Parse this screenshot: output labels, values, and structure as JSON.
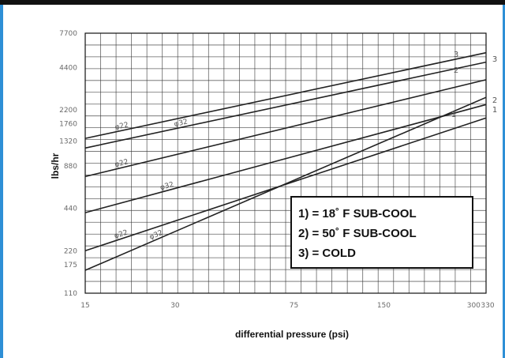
{
  "chart_data": {
    "type": "line",
    "xlabel": "differential pressure (psi)",
    "ylabel": "lbs/hr",
    "x_scale": "log",
    "y_scale": "log",
    "xlim": [
      15,
      330
    ],
    "ylim": [
      110,
      7700
    ],
    "x_ticks": [
      15,
      30,
      75,
      150,
      300,
      330
    ],
    "x_tick_labels": [
      "15",
      "30",
      "75",
      "150",
      "300",
      "330"
    ],
    "y_ticks": [
      110,
      175,
      220,
      440,
      880,
      1320,
      1760,
      2200,
      4400,
      7700
    ],
    "y_tick_labels": [
      "110",
      "175",
      "220",
      "440",
      "880",
      "1320",
      "1760",
      "2200",
      "4400",
      "7700"
    ],
    "grid": true,
    "lines": [
      {
        "id": "1",
        "curve": "φ32",
        "points": [
          [
            15,
            160
          ],
          [
            330,
            2700
          ]
        ]
      },
      {
        "id": "1",
        "curve": "φ22",
        "points": [
          [
            15,
            220
          ],
          [
            330,
            1930
          ]
        ]
      },
      {
        "id": "2",
        "curve": "φ32",
        "points": [
          [
            15,
            410
          ],
          [
            330,
            2400
          ]
        ]
      },
      {
        "id": "2",
        "curve": "φ22",
        "points": [
          [
            15,
            740
          ],
          [
            330,
            3600
          ]
        ]
      },
      {
        "id": "3",
        "curve": "φ32",
        "points": [
          [
            15,
            1180
          ],
          [
            330,
            4800
          ]
        ]
      },
      {
        "id": "3",
        "curve": "φ22",
        "points": [
          [
            15,
            1380
          ],
          [
            330,
            5600
          ]
        ]
      }
    ],
    "curve_labels": [
      "φ22",
      "φ32",
      "φ22",
      "φ32",
      "φ22",
      "φ32"
    ],
    "line_end_labels": [
      "3",
      "2",
      "1",
      "3",
      "2",
      "1"
    ],
    "legend": [
      "1) = 18˚ F SUB-COOL",
      "2) = 50˚ F SUB-COOL",
      "3) = COLD"
    ],
    "legend_position": "center-right"
  },
  "colors": {
    "grid": "#333333",
    "line": "#222222",
    "border_top": "#111111",
    "border_side": "#2e8fd6"
  }
}
